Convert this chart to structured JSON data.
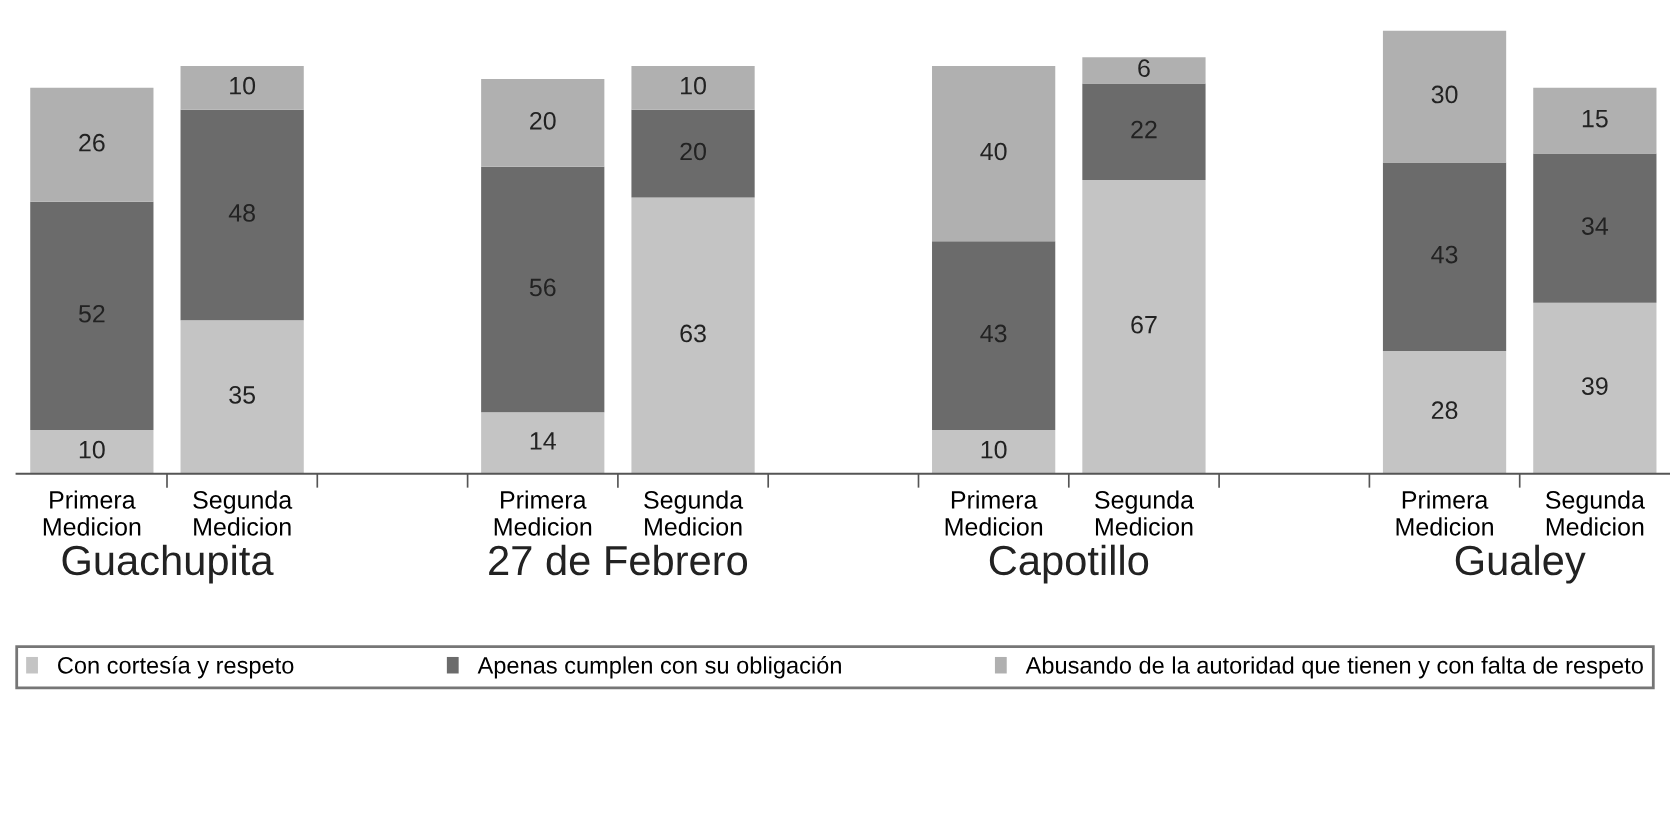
{
  "chart_data": {
    "type": "bar",
    "stacked": true,
    "data_labels": true,
    "legend": "bottom",
    "grid": false,
    "tick_labels": "x",
    "categories": [
      "Primera\nMedicion",
      "Segunda\nMedicion",
      null,
      "Primera\nMedicion",
      "Segunda\nMedicion",
      null,
      "Primera\nMedicion",
      "Segunda\nMedicion",
      null,
      "Primera\nMedicion",
      "Segunda\nMedicion"
    ],
    "series": [
      {
        "name": "Con cortesía y respeto",
        "color": "#c4c4c4",
        "values": [
          10,
          35,
          null,
          14,
          63,
          null,
          10,
          67,
          null,
          28,
          39
        ]
      },
      {
        "name": "Apenas cumplen con su obligación",
        "color": "#6b6b6b",
        "values": [
          52,
          48,
          null,
          56,
          20,
          null,
          43,
          22,
          null,
          43,
          34
        ]
      },
      {
        "name": "Abusando de la autoridad que tienen y con falta de respeto",
        "color": "#b0b0b0",
        "values": [
          26,
          10,
          null,
          20,
          10,
          null,
          40,
          6,
          null,
          30,
          15
        ]
      }
    ],
    "annotations": [
      "Guachupita",
      "27 de Febrero",
      "Capotillo",
      "Gualey"
    ]
  }
}
